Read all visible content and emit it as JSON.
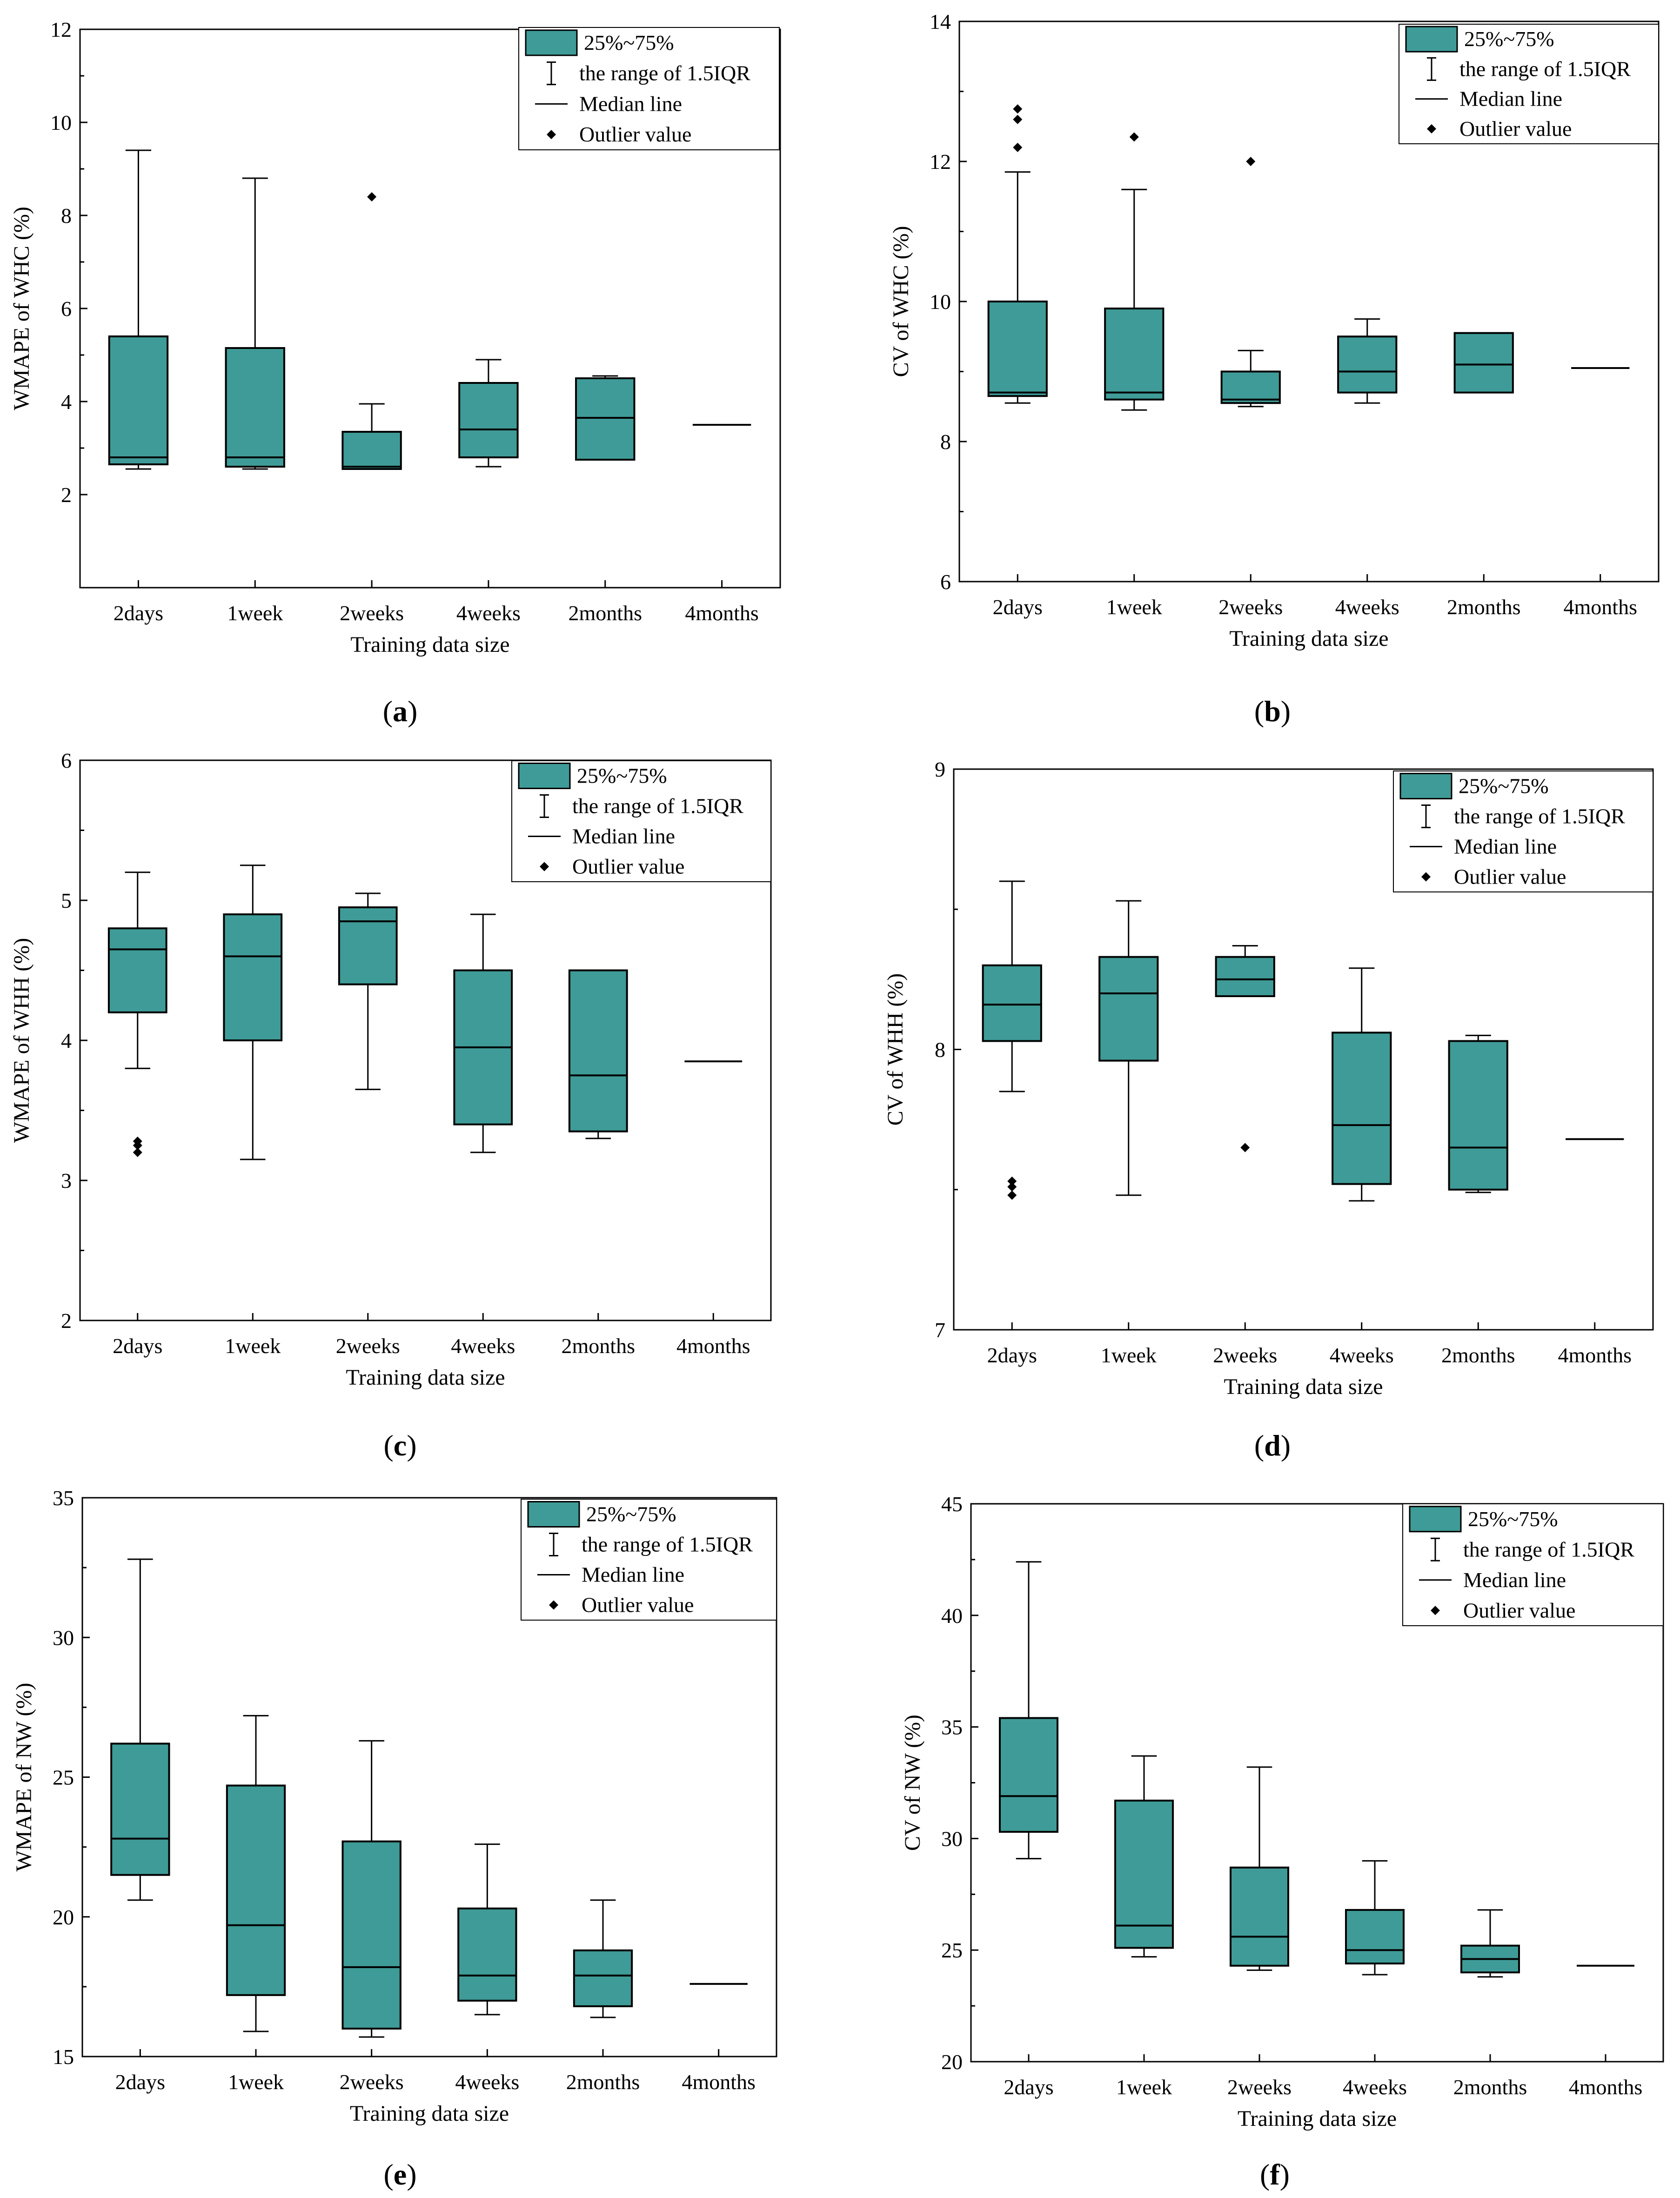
{
  "colors": {
    "box_fill": "#3f9b97",
    "stroke": "#000000",
    "background": "#ffffff"
  },
  "legend": {
    "box": "25%~75%",
    "whisker": "the range of 1.5IQR",
    "median": "Median line",
    "outlier": "Outlier value"
  },
  "chart_data": [
    {
      "type": "box",
      "panel_label": "a",
      "title": "",
      "xlabel": "Training data size",
      "ylabel": "WMAPE of WHC (%)",
      "ylim": [
        0,
        12
      ],
      "yticks": [
        2,
        4,
        6,
        8,
        10,
        12
      ],
      "categories": [
        "2days",
        "1week",
        "2weeks",
        "4weeks",
        "2months",
        "4months"
      ],
      "boxes": [
        {
          "min": 2.55,
          "q1": 2.65,
          "median": 2.8,
          "q3": 5.4,
          "max": 9.4,
          "outliers": []
        },
        {
          "min": 2.55,
          "q1": 2.6,
          "median": 2.8,
          "q3": 5.15,
          "max": 8.8,
          "outliers": []
        },
        {
          "min": 2.55,
          "q1": 2.55,
          "median": 2.6,
          "q3": 3.35,
          "max": 3.95,
          "outliers": [
            8.4
          ]
        },
        {
          "min": 2.6,
          "q1": 2.8,
          "median": 3.4,
          "q3": 4.4,
          "max": 4.9,
          "outliers": []
        },
        {
          "min": 2.75,
          "q1": 2.75,
          "median": 3.65,
          "q3": 4.5,
          "max": 4.55,
          "outliers": []
        },
        {
          "min": 3.5,
          "q1": 3.5,
          "median": 3.5,
          "q3": 3.5,
          "max": 3.5,
          "outliers": []
        }
      ]
    },
    {
      "type": "box",
      "panel_label": "b",
      "title": "",
      "xlabel": "Training data size",
      "ylabel": "CV of WHC (%)",
      "ylim": [
        6,
        14
      ],
      "yticks": [
        6,
        8,
        10,
        12,
        14
      ],
      "categories": [
        "2days",
        "1week",
        "2weeks",
        "4weeks",
        "2months",
        "4months"
      ],
      "boxes": [
        {
          "min": 8.55,
          "q1": 8.65,
          "median": 8.7,
          "q3": 10.0,
          "max": 11.85,
          "outliers": [
            12.2,
            12.6,
            12.75
          ]
        },
        {
          "min": 8.45,
          "q1": 8.6,
          "median": 8.7,
          "q3": 9.9,
          "max": 11.6,
          "outliers": [
            12.35
          ]
        },
        {
          "min": 8.5,
          "q1": 8.55,
          "median": 8.6,
          "q3": 9.0,
          "max": 9.3,
          "outliers": [
            12.0
          ]
        },
        {
          "min": 8.55,
          "q1": 8.7,
          "median": 9.0,
          "q3": 9.5,
          "max": 9.75,
          "outliers": []
        },
        {
          "min": 8.7,
          "q1": 8.7,
          "median": 9.1,
          "q3": 9.55,
          "max": 9.55,
          "outliers": []
        },
        {
          "min": 9.05,
          "q1": 9.05,
          "median": 9.05,
          "q3": 9.05,
          "max": 9.05,
          "outliers": []
        }
      ]
    },
    {
      "type": "box",
      "panel_label": "c",
      "title": "",
      "xlabel": "Training data size",
      "ylabel": "WMAPE of WHH (%)",
      "ylim": [
        2,
        6
      ],
      "yticks": [
        2,
        3,
        4,
        5,
        6
      ],
      "categories": [
        "2days",
        "1week",
        "2weeks",
        "4weeks",
        "2months",
        "4months"
      ],
      "boxes": [
        {
          "min": 3.8,
          "q1": 4.2,
          "median": 4.65,
          "q3": 4.8,
          "max": 5.2,
          "outliers": [
            3.2,
            3.25,
            3.28
          ]
        },
        {
          "min": 3.15,
          "q1": 4.0,
          "median": 4.6,
          "q3": 4.9,
          "max": 5.25,
          "outliers": []
        },
        {
          "min": 3.65,
          "q1": 4.4,
          "median": 4.85,
          "q3": 4.95,
          "max": 5.05,
          "outliers": []
        },
        {
          "min": 3.2,
          "q1": 3.4,
          "median": 3.95,
          "q3": 4.5,
          "max": 4.9,
          "outliers": []
        },
        {
          "min": 3.3,
          "q1": 3.35,
          "median": 3.75,
          "q3": 4.5,
          "max": 4.5,
          "outliers": []
        },
        {
          "min": 3.85,
          "q1": 3.85,
          "median": 3.85,
          "q3": 3.85,
          "max": 3.85,
          "outliers": []
        }
      ]
    },
    {
      "type": "box",
      "panel_label": "d",
      "title": "",
      "xlabel": "Training data size",
      "ylabel": "CV of WHH (%)",
      "ylim": [
        7,
        9
      ],
      "yticks": [
        7,
        8,
        9
      ],
      "categories": [
        "2days",
        "1week",
        "2weeks",
        "4weeks",
        "2months",
        "4months"
      ],
      "boxes": [
        {
          "min": 7.85,
          "q1": 8.03,
          "median": 8.16,
          "q3": 8.3,
          "max": 8.6,
          "outliers": [
            7.48,
            7.51,
            7.53
          ]
        },
        {
          "min": 7.48,
          "q1": 7.96,
          "median": 8.2,
          "q3": 8.33,
          "max": 8.53,
          "outliers": []
        },
        {
          "min": 8.19,
          "q1": 8.19,
          "median": 8.25,
          "q3": 8.33,
          "max": 8.37,
          "outliers": [
            7.65
          ]
        },
        {
          "min": 7.46,
          "q1": 7.52,
          "median": 7.73,
          "q3": 8.06,
          "max": 8.29,
          "outliers": []
        },
        {
          "min": 7.49,
          "q1": 7.5,
          "median": 7.65,
          "q3": 8.03,
          "max": 8.05,
          "outliers": []
        },
        {
          "min": 7.68,
          "q1": 7.68,
          "median": 7.68,
          "q3": 7.68,
          "max": 7.68,
          "outliers": []
        }
      ]
    },
    {
      "type": "box",
      "panel_label": "e",
      "title": "",
      "xlabel": "Training data size",
      "ylabel": "WMAPE of NW (%)",
      "ylim": [
        15,
        35
      ],
      "yticks": [
        15,
        20,
        25,
        30,
        35
      ],
      "categories": [
        "2days",
        "1week",
        "2weeks",
        "4weeks",
        "2months",
        "4months"
      ],
      "boxes": [
        {
          "min": 20.6,
          "q1": 21.5,
          "median": 22.8,
          "q3": 26.2,
          "max": 32.8,
          "outliers": []
        },
        {
          "min": 15.9,
          "q1": 17.2,
          "median": 19.7,
          "q3": 24.7,
          "max": 27.2,
          "outliers": []
        },
        {
          "min": 15.7,
          "q1": 16.0,
          "median": 18.2,
          "q3": 22.7,
          "max": 26.3,
          "outliers": []
        },
        {
          "min": 16.5,
          "q1": 17.0,
          "median": 17.9,
          "q3": 20.3,
          "max": 22.6,
          "outliers": []
        },
        {
          "min": 16.4,
          "q1": 16.8,
          "median": 17.9,
          "q3": 18.8,
          "max": 20.6,
          "outliers": []
        },
        {
          "min": 17.6,
          "q1": 17.6,
          "median": 17.6,
          "q3": 17.6,
          "max": 17.6,
          "outliers": []
        }
      ]
    },
    {
      "type": "box",
      "panel_label": "f",
      "title": "",
      "xlabel": "Training data size",
      "ylabel": "CV of NW (%)",
      "ylim": [
        20,
        45
      ],
      "yticks": [
        20,
        25,
        30,
        35,
        40,
        45
      ],
      "categories": [
        "2days",
        "1week",
        "2weeks",
        "4weeks",
        "2months",
        "4months"
      ],
      "boxes": [
        {
          "min": 29.1,
          "q1": 30.3,
          "median": 31.9,
          "q3": 35.4,
          "max": 42.4,
          "outliers": []
        },
        {
          "min": 24.7,
          "q1": 25.1,
          "median": 26.1,
          "q3": 31.7,
          "max": 33.7,
          "outliers": []
        },
        {
          "min": 24.1,
          "q1": 24.3,
          "median": 25.6,
          "q3": 28.7,
          "max": 33.2,
          "outliers": []
        },
        {
          "min": 23.9,
          "q1": 24.4,
          "median": 25.0,
          "q3": 26.8,
          "max": 29.0,
          "outliers": []
        },
        {
          "min": 23.8,
          "q1": 24.0,
          "median": 24.6,
          "q3": 25.2,
          "max": 26.8,
          "outliers": []
        },
        {
          "min": 24.3,
          "q1": 24.3,
          "median": 24.3,
          "q3": 24.3,
          "max": 24.3,
          "outliers": []
        }
      ]
    }
  ]
}
